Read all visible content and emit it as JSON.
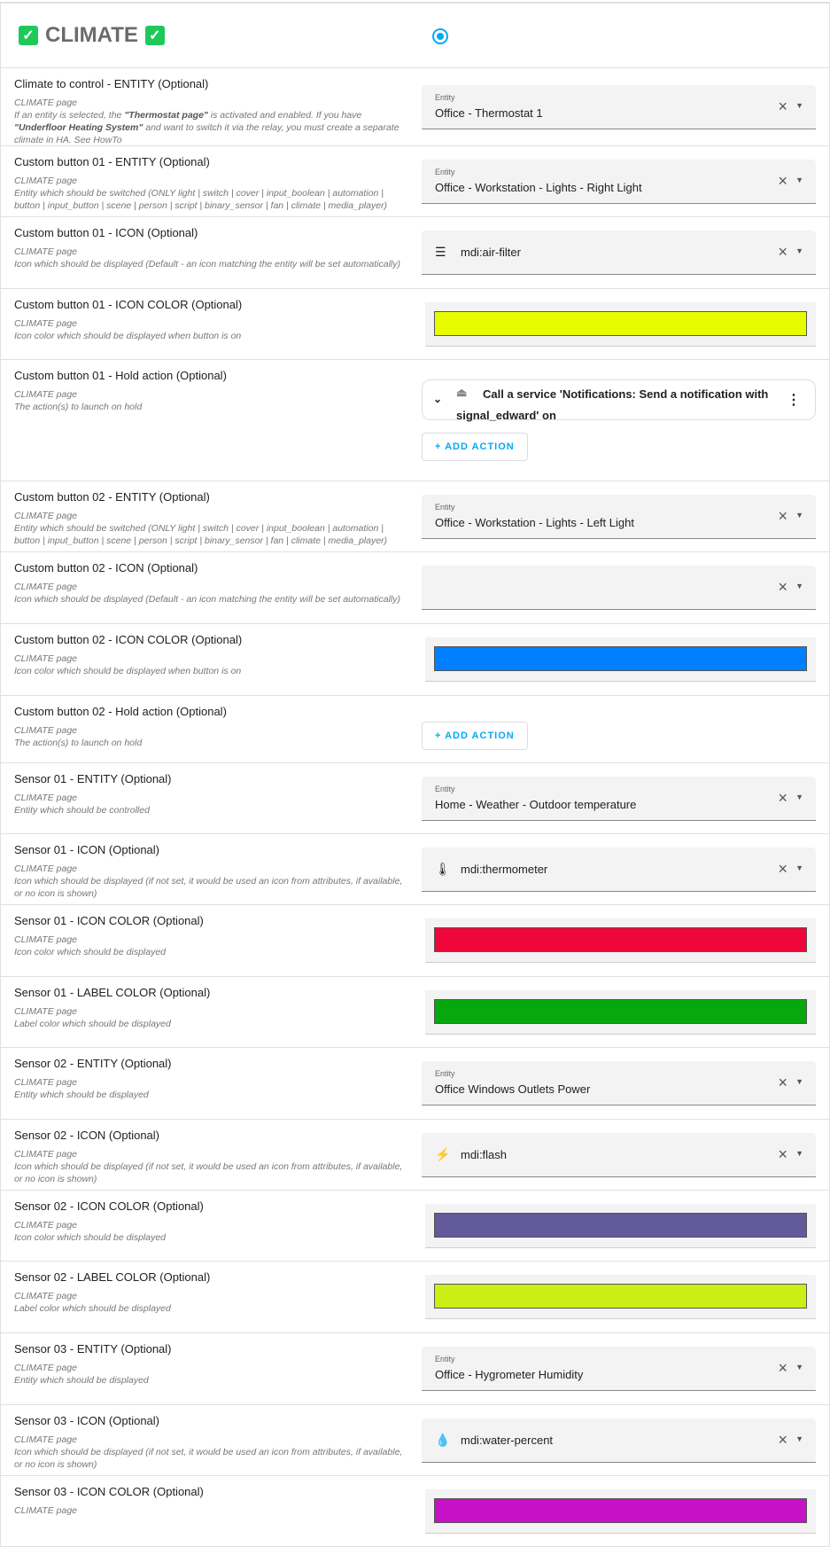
{
  "header": {
    "title": "CLIMATE",
    "check_icon": "check-box-icon",
    "radio_selected": true
  },
  "colors": {
    "accent": "#03a9f4",
    "check": "#1ec95a"
  },
  "rows": [
    {
      "type": "entity",
      "title": "Climate to control - ENTITY (Optional)",
      "subtitle": "CLIMATE page",
      "desc_html": "If an entity is selected, the <b>\"Thermostat page\"</b> is activated and enabled. If you have <b>\"Underfloor Heating System\"</b> and want to switch it via the relay, you must create a separate climate in HA. See HowTo",
      "label": "Entity",
      "value": "Office - Thermostat 1"
    },
    {
      "type": "entity",
      "title": "Custom button 01 - ENTITY (Optional)",
      "subtitle": "CLIMATE page",
      "desc": "Entity which should be switched (ONLY light | switch | cover | input_boolean | automation | button | input_button | scene | person | script | binary_sensor | fan | climate | media_player)",
      "label": "Entity",
      "value": "Office - Workstation - Lights - Right Light"
    },
    {
      "type": "icon",
      "title": "Custom button 01 - ICON (Optional)",
      "subtitle": "CLIMATE page",
      "desc": "Icon which should be displayed (Default - an icon matching the entity will be set automatically)",
      "icon": "air-filter-icon",
      "glyph": "☰",
      "value": "mdi:air-filter"
    },
    {
      "type": "color",
      "title": "Custom button 01 - ICON COLOR (Optional)",
      "subtitle": "CLIMATE page",
      "desc": "Icon color which should be displayed when button is on",
      "color": "#e8fc00"
    },
    {
      "type": "action",
      "title": "Custom button 01 - Hold action (Optional)",
      "subtitle": "CLIMATE page",
      "desc": "The action(s) to launch on hold",
      "action": "Call a service 'Notifications: Send a notification with signal_edward' on",
      "add": "ADD ACTION"
    },
    {
      "type": "entity",
      "title": "Custom button 02 - ENTITY (Optional)",
      "subtitle": "CLIMATE page",
      "desc": "Entity which should be switched (ONLY light | switch | cover | input_boolean | automation | button | input_button | scene | person | script | binary_sensor | fan | climate | media_player)",
      "label": "Entity",
      "value": "Office - Workstation - Lights - Left Light"
    },
    {
      "type": "icon",
      "title": "Custom button 02 - ICON (Optional)",
      "subtitle": "CLIMATE page",
      "desc": "Icon which should be displayed (Default - an icon matching the entity will be set automatically)",
      "value": ""
    },
    {
      "type": "color",
      "title": "Custom button 02 - ICON COLOR (Optional)",
      "subtitle": "CLIMATE page",
      "desc": "Icon color which should be displayed when button is on",
      "color": "#0080ff"
    },
    {
      "type": "addonly",
      "title": "Custom button 02 - Hold action (Optional)",
      "subtitle": "CLIMATE page",
      "desc": "The action(s) to launch on hold",
      "add": "ADD ACTION"
    },
    {
      "type": "entity",
      "title": "Sensor 01 - ENTITY (Optional)",
      "subtitle": "CLIMATE page",
      "desc": "Entity which should be controlled",
      "label": "Entity",
      "value": "Home - Weather - Outdoor temperature"
    },
    {
      "type": "icon",
      "title": "Sensor 01 - ICON (Optional)",
      "subtitle": "CLIMATE page",
      "desc": "Icon which should be displayed (if not set, it would be used an icon from attributes, if available, or no icon is shown)",
      "icon": "thermometer-icon",
      "glyph": "🌡",
      "value": "mdi:thermometer"
    },
    {
      "type": "color",
      "title": "Sensor 01 - ICON COLOR (Optional)",
      "subtitle": "CLIMATE page",
      "desc": "Icon color which should be displayed",
      "color": "#ee0738"
    },
    {
      "type": "color",
      "title": "Sensor 01 - LABEL COLOR (Optional)",
      "subtitle": "CLIMATE page",
      "desc": "Label color which should be displayed",
      "color": "#07a70e"
    },
    {
      "type": "entity",
      "title": "Sensor 02 - ENTITY (Optional)",
      "subtitle": "CLIMATE page",
      "desc": "Entity which should be displayed",
      "label": "Entity",
      "value": "Office Windows Outlets Power"
    },
    {
      "type": "icon",
      "title": "Sensor 02 - ICON (Optional)",
      "subtitle": "CLIMATE page",
      "desc": "Icon which should be displayed (if not set, it would be used an icon from attributes, if available, or no icon is shown)",
      "icon": "flash-icon",
      "glyph": "⚡",
      "value": "mdi:flash"
    },
    {
      "type": "color",
      "title": "Sensor 02 - ICON COLOR (Optional)",
      "subtitle": "CLIMATE page",
      "desc": "Icon color which should be displayed",
      "color": "#635a9c"
    },
    {
      "type": "color",
      "title": "Sensor 02 - LABEL COLOR (Optional)",
      "subtitle": "CLIMATE page",
      "desc": "Label color which should be displayed",
      "color": "#cbee14"
    },
    {
      "type": "entity",
      "title": "Sensor 03 - ENTITY (Optional)",
      "subtitle": "CLIMATE page",
      "desc": "Entity which should be displayed",
      "label": "Entity",
      "value": "Office - Hygrometer Humidity"
    },
    {
      "type": "icon",
      "title": "Sensor 03 - ICON (Optional)",
      "subtitle": "CLIMATE page",
      "desc": "Icon which should be displayed (if not set, it would be used an icon from attributes, if available, or no icon is shown)",
      "icon": "water-percent-icon",
      "glyph": "💧",
      "value": "mdi:water-percent"
    },
    {
      "type": "color",
      "title": "Sensor 03 - ICON COLOR (Optional)",
      "subtitle": "CLIMATE page",
      "desc": "",
      "color": "#c711c7"
    }
  ]
}
